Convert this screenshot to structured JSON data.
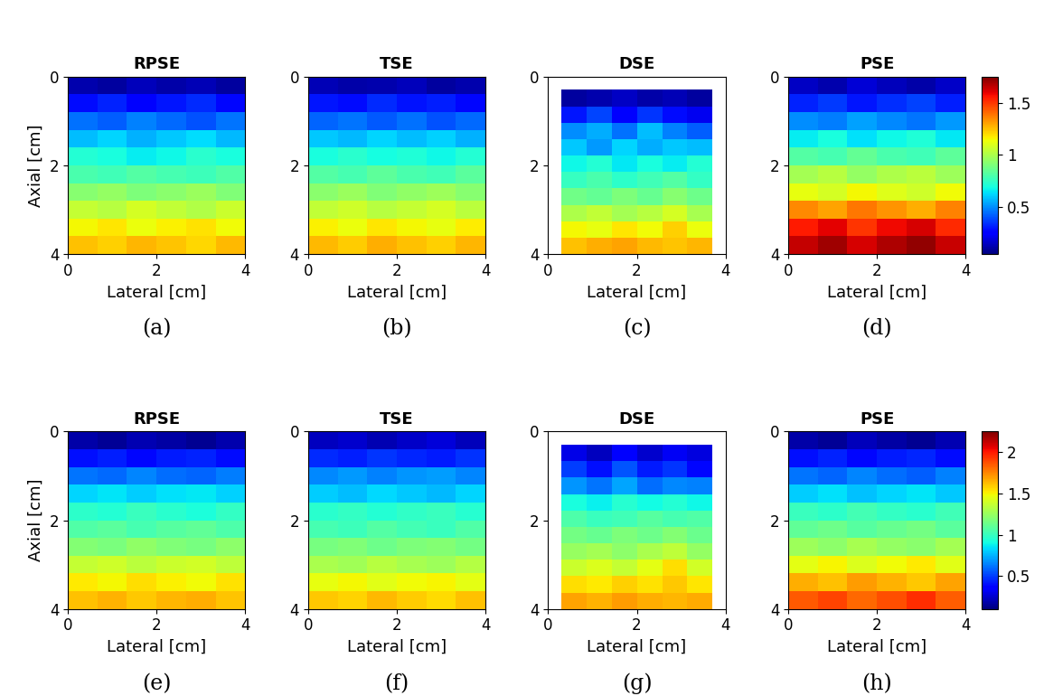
{
  "chart_data": [
    {
      "type": "heatmap",
      "title": "RPSE",
      "caption": "(a)",
      "xlabel": "Lateral [cm]",
      "ylabel": "Axial [cm]",
      "xlim": [
        0,
        4
      ],
      "ylim": [
        4,
        0
      ],
      "xticks": [
        0,
        2,
        4
      ],
      "yticks": [
        0,
        2,
        4
      ],
      "color_range": [
        0.05,
        1.75
      ],
      "x_edges": [
        0,
        0.67,
        1.33,
        2,
        2.67,
        3.33,
        4
      ],
      "y_edges": [
        0,
        0.4,
        0.8,
        1.2,
        1.6,
        2.0,
        2.4,
        2.8,
        3.2,
        3.6,
        4.0
      ],
      "cells": [
        [
          0.12,
          0.1,
          0.14,
          0.11,
          0.13,
          0.1
        ],
        [
          0.28,
          0.32,
          0.26,
          0.3,
          0.33,
          0.27
        ],
        [
          0.45,
          0.42,
          0.48,
          0.44,
          0.4,
          0.46
        ],
        [
          0.58,
          0.62,
          0.56,
          0.6,
          0.63,
          0.57
        ],
        [
          0.72,
          0.7,
          0.66,
          0.68,
          0.73,
          0.7
        ],
        [
          0.8,
          0.78,
          0.82,
          0.79,
          0.77,
          0.81
        ],
        [
          0.92,
          0.95,
          0.9,
          0.93,
          0.96,
          0.91
        ],
        [
          1.05,
          1.02,
          1.08,
          1.04,
          1.01,
          1.06
        ],
        [
          1.15,
          1.18,
          1.13,
          1.16,
          1.19,
          1.14
        ],
        [
          1.25,
          1.22,
          1.27,
          1.24,
          1.21,
          1.26
        ]
      ]
    },
    {
      "type": "heatmap",
      "title": "TSE",
      "caption": "(b)",
      "xlabel": "Lateral [cm]",
      "xlim": [
        0,
        4
      ],
      "ylim": [
        4,
        0
      ],
      "xticks": [
        0,
        2,
        4
      ],
      "yticks": [
        0,
        2,
        4
      ],
      "color_range": [
        0.05,
        1.75
      ],
      "x_edges": [
        0,
        0.67,
        1.33,
        2,
        2.67,
        3.33,
        4
      ],
      "y_edges": [
        0,
        0.4,
        0.8,
        1.2,
        1.6,
        2.0,
        2.4,
        2.8,
        3.2,
        3.6,
        4.0
      ],
      "cells": [
        [
          0.13,
          0.11,
          0.12,
          0.14,
          0.1,
          0.12
        ],
        [
          0.3,
          0.28,
          0.33,
          0.29,
          0.31,
          0.27
        ],
        [
          0.43,
          0.46,
          0.41,
          0.45,
          0.4,
          0.44
        ],
        [
          0.6,
          0.57,
          0.62,
          0.58,
          0.61,
          0.56
        ],
        [
          0.7,
          0.73,
          0.69,
          0.71,
          0.68,
          0.72
        ],
        [
          0.82,
          0.79,
          0.84,
          0.8,
          0.78,
          0.83
        ],
        [
          0.93,
          0.96,
          0.91,
          0.94,
          0.97,
          0.92
        ],
        [
          1.04,
          1.07,
          1.02,
          1.05,
          1.08,
          1.03
        ],
        [
          1.16,
          1.13,
          1.18,
          1.15,
          1.12,
          1.17
        ],
        [
          1.26,
          1.23,
          1.28,
          1.25,
          1.22,
          1.27
        ]
      ]
    },
    {
      "type": "heatmap",
      "title": "DSE",
      "caption": "(c)",
      "xlabel": "Lateral [cm]",
      "xlim": [
        0,
        4
      ],
      "ylim": [
        4,
        0
      ],
      "xticks": [
        0,
        2,
        4
      ],
      "yticks": [
        0,
        2,
        4
      ],
      "color_range": [
        0.05,
        1.75
      ],
      "x_edges": [
        0.3,
        0.87,
        1.43,
        2.0,
        2.57,
        3.13,
        3.7
      ],
      "y_edges": [
        0.3,
        0.67,
        1.04,
        1.41,
        1.78,
        2.15,
        2.52,
        2.89,
        3.26,
        3.63,
        4.0
      ],
      "cells": [
        [
          0.1,
          0.12,
          0.15,
          0.11,
          0.13,
          0.1
        ],
        [
          0.3,
          0.38,
          0.25,
          0.35,
          0.28,
          0.22
        ],
        [
          0.5,
          0.55,
          0.45,
          0.58,
          0.48,
          0.42
        ],
        [
          0.6,
          0.52,
          0.62,
          0.55,
          0.6,
          0.58
        ],
        [
          0.68,
          0.72,
          0.65,
          0.7,
          0.66,
          0.72
        ],
        [
          0.76,
          0.8,
          0.74,
          0.78,
          0.82,
          0.75
        ],
        [
          0.88,
          0.85,
          0.9,
          0.86,
          0.92,
          0.87
        ],
        [
          1.0,
          1.04,
          0.98,
          1.02,
          1.08,
          0.99
        ],
        [
          1.15,
          1.12,
          1.18,
          1.14,
          1.22,
          1.13
        ],
        [
          1.25,
          1.28,
          1.3,
          1.26,
          1.24,
          1.27
        ]
      ]
    },
    {
      "type": "heatmap",
      "title": "PSE",
      "caption": "(d)",
      "xlabel": "Lateral [cm]",
      "xlim": [
        0,
        4
      ],
      "ylim": [
        4,
        0
      ],
      "xticks": [
        0,
        2,
        4
      ],
      "yticks": [
        0,
        2,
        4
      ],
      "color_range": [
        0.05,
        1.75
      ],
      "colorbar_ticks": [
        0.5,
        1,
        1.5
      ],
      "x_edges": [
        0,
        0.67,
        1.33,
        2,
        2.67,
        3.33,
        4
      ],
      "y_edges": [
        0,
        0.4,
        0.8,
        1.2,
        1.6,
        2.0,
        2.4,
        2.8,
        3.2,
        3.6,
        4.0
      ],
      "cells": [
        [
          0.15,
          0.12,
          0.18,
          0.14,
          0.11,
          0.16
        ],
        [
          0.32,
          0.36,
          0.3,
          0.34,
          0.37,
          0.31
        ],
        [
          0.5,
          0.47,
          0.53,
          0.49,
          0.46,
          0.52
        ],
        [
          0.66,
          0.7,
          0.64,
          0.68,
          0.71,
          0.65
        ],
        [
          0.82,
          0.79,
          0.85,
          0.8,
          0.78,
          0.84
        ],
        [
          0.98,
          1.02,
          0.95,
          1.0,
          1.03,
          0.97
        ],
        [
          1.12,
          1.08,
          1.15,
          1.1,
          1.07,
          1.14
        ],
        [
          1.35,
          1.3,
          1.38,
          1.33,
          1.28,
          1.36
        ],
        [
          1.55,
          1.6,
          1.5,
          1.58,
          1.62,
          1.52
        ],
        [
          1.65,
          1.7,
          1.62,
          1.68,
          1.72,
          1.64
        ]
      ]
    },
    {
      "type": "heatmap",
      "title": "RPSE",
      "caption": "(e)",
      "xlabel": "Lateral [cm]",
      "ylabel": "Axial [cm]",
      "xlim": [
        0,
        4
      ],
      "ylim": [
        4,
        0
      ],
      "xticks": [
        0,
        2,
        4
      ],
      "yticks": [
        0,
        2,
        4
      ],
      "color_range": [
        0.1,
        2.25
      ],
      "x_edges": [
        0,
        0.67,
        1.33,
        2,
        2.67,
        3.33,
        4
      ],
      "y_edges": [
        0,
        0.4,
        0.8,
        1.2,
        1.6,
        2.0,
        2.4,
        2.8,
        3.2,
        3.6,
        4.0
      ],
      "cells": [
        [
          0.18,
          0.15,
          0.2,
          0.17,
          0.14,
          0.19
        ],
        [
          0.4,
          0.43,
          0.38,
          0.42,
          0.44,
          0.39
        ],
        [
          0.62,
          0.59,
          0.65,
          0.6,
          0.58,
          0.63
        ],
        [
          0.82,
          0.85,
          0.8,
          0.84,
          0.86,
          0.81
        ],
        [
          0.97,
          0.94,
          1.0,
          0.96,
          0.93,
          0.99
        ],
        [
          1.06,
          1.09,
          1.04,
          1.08,
          1.1,
          1.05
        ],
        [
          1.2,
          1.17,
          1.23,
          1.19,
          1.16,
          1.22
        ],
        [
          1.36,
          1.39,
          1.34,
          1.38,
          1.4,
          1.35
        ],
        [
          1.52,
          1.49,
          1.55,
          1.51,
          1.48,
          1.54
        ],
        [
          1.62,
          1.65,
          1.6,
          1.64,
          1.66,
          1.61
        ]
      ]
    },
    {
      "type": "heatmap",
      "title": "TSE",
      "caption": "(f)",
      "xlabel": "Lateral [cm]",
      "xlim": [
        0,
        4
      ],
      "ylim": [
        4,
        0
      ],
      "xticks": [
        0,
        2,
        4
      ],
      "yticks": [
        0,
        2,
        4
      ],
      "color_range": [
        0.1,
        2.25
      ],
      "x_edges": [
        0,
        0.67,
        1.33,
        2,
        2.67,
        3.33,
        4
      ],
      "y_edges": [
        0,
        0.4,
        0.8,
        1.2,
        1.6,
        2.0,
        2.4,
        2.8,
        3.2,
        3.6,
        4.0
      ],
      "cells": [
        [
          0.22,
          0.25,
          0.2,
          0.24,
          0.27,
          0.21
        ],
        [
          0.46,
          0.43,
          0.48,
          0.45,
          0.42,
          0.47
        ],
        [
          0.66,
          0.69,
          0.64,
          0.68,
          0.7,
          0.65
        ],
        [
          0.8,
          0.77,
          0.83,
          0.79,
          0.76,
          0.82
        ],
        [
          0.96,
          0.99,
          0.94,
          0.98,
          1.0,
          0.95
        ],
        [
          1.04,
          1.01,
          1.07,
          1.03,
          1.0,
          1.06
        ],
        [
          1.16,
          1.19,
          1.14,
          1.18,
          1.2,
          1.15
        ],
        [
          1.3,
          1.27,
          1.33,
          1.29,
          1.26,
          1.32
        ],
        [
          1.46,
          1.49,
          1.44,
          1.48,
          1.5,
          1.45
        ],
        [
          1.6,
          1.57,
          1.63,
          1.59,
          1.56,
          1.62
        ]
      ]
    },
    {
      "type": "heatmap",
      "title": "DSE",
      "caption": "(g)",
      "xlabel": "Lateral [cm]",
      "xlim": [
        0,
        4
      ],
      "ylim": [
        4,
        0
      ],
      "xticks": [
        0,
        2,
        4
      ],
      "yticks": [
        0,
        2,
        4
      ],
      "color_range": [
        0.1,
        2.25
      ],
      "x_edges": [
        0.3,
        0.87,
        1.43,
        2.0,
        2.57,
        3.13,
        3.7
      ],
      "y_edges": [
        0.3,
        0.67,
        1.04,
        1.41,
        1.78,
        2.15,
        2.52,
        2.89,
        3.26,
        3.63,
        4.0
      ],
      "cells": [
        [
          0.3,
          0.22,
          0.35,
          0.25,
          0.32,
          0.28
        ],
        [
          0.5,
          0.4,
          0.55,
          0.42,
          0.48,
          0.38
        ],
        [
          0.68,
          0.62,
          0.72,
          0.6,
          0.66,
          0.64
        ],
        [
          0.92,
          0.88,
          0.95,
          0.9,
          0.94,
          0.89
        ],
        [
          1.05,
          1.0,
          1.02,
          1.08,
          1.04,
          1.06
        ],
        [
          1.15,
          1.12,
          1.18,
          1.14,
          1.2,
          1.13
        ],
        [
          1.25,
          1.28,
          1.22,
          1.3,
          1.35,
          1.24
        ],
        [
          1.38,
          1.42,
          1.36,
          1.45,
          1.55,
          1.4
        ],
        [
          1.55,
          1.52,
          1.58,
          1.54,
          1.6,
          1.53
        ],
        [
          1.68,
          1.65,
          1.7,
          1.66,
          1.64,
          1.67
        ]
      ]
    },
    {
      "type": "heatmap",
      "title": "PSE",
      "caption": "(h)",
      "xlabel": "Lateral [cm]",
      "xlim": [
        0,
        4
      ],
      "ylim": [
        4,
        0
      ],
      "xticks": [
        0,
        2,
        4
      ],
      "yticks": [
        0,
        2,
        4
      ],
      "color_range": [
        0.1,
        2.25
      ],
      "colorbar_ticks": [
        0.5,
        1,
        1.5,
        2
      ],
      "x_edges": [
        0,
        0.67,
        1.33,
        2,
        2.67,
        3.33,
        4
      ],
      "y_edges": [
        0,
        0.4,
        0.8,
        1.2,
        1.6,
        2.0,
        2.4,
        2.8,
        3.2,
        3.6,
        4.0
      ],
      "cells": [
        [
          0.18,
          0.15,
          0.21,
          0.17,
          0.14,
          0.2
        ],
        [
          0.4,
          0.44,
          0.38,
          0.42,
          0.45,
          0.39
        ],
        [
          0.62,
          0.58,
          0.65,
          0.6,
          0.57,
          0.64
        ],
        [
          0.8,
          0.84,
          0.78,
          0.82,
          0.85,
          0.79
        ],
        [
          1.0,
          0.97,
          1.03,
          0.99,
          0.96,
          1.02
        ],
        [
          1.1,
          1.14,
          1.08,
          1.12,
          1.15,
          1.09
        ],
        [
          1.26,
          1.22,
          1.29,
          1.24,
          1.21,
          1.28
        ],
        [
          1.45,
          1.5,
          1.42,
          1.48,
          1.52,
          1.44
        ],
        [
          1.66,
          1.62,
          1.7,
          1.65,
          1.6,
          1.68
        ],
        [
          1.85,
          1.9,
          1.82,
          1.88,
          1.95,
          1.84
        ]
      ]
    }
  ]
}
